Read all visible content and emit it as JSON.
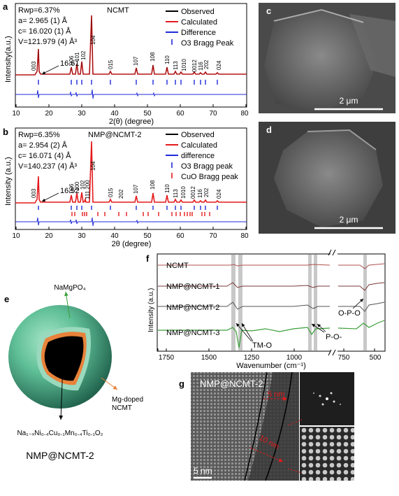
{
  "panel_letters": {
    "a": "a",
    "b": "b",
    "c": "c",
    "d": "d",
    "e": "e",
    "f": "f",
    "g": "g"
  },
  "colors": {
    "observed": "#000000",
    "calculated": "#e41a1c",
    "difference": "#1f2bd8",
    "bragg_o3": "#1f2bd8",
    "bragg_cuo": "#e41a1c",
    "ft_ncmt": "#b05050",
    "ft_1": "#7a3a3a",
    "ft_2": "#555555",
    "ft_3": "#3aa03a",
    "sphere": "#5fbf97",
    "shell": "#e8823a",
    "band": "#c8c8c8"
  },
  "panel_a": {
    "stats": [
      "Rwp=6.37%",
      "a= 2.965 (1) Å",
      "c= 16.020 (1) Å",
      "V=121.979 (4) Å³"
    ],
    "sample": "NCMT",
    "peak_arrow_label": "16.61",
    "legend": [
      "Observed",
      "Calculated",
      "Difference",
      "O3 Bragg Peak"
    ],
    "ylabel": "Intensity(a.u.)",
    "xlabel": "2(θ) (degree)",
    "xticks": [
      "10",
      "20",
      "30",
      "40",
      "50",
      "60",
      "70",
      "80"
    ],
    "peak_labels": [
      "003",
      "006",
      "101",
      "102",
      "104",
      "015",
      "107",
      "108",
      "110",
      "113",
      "1010",
      "0012",
      "116",
      "202",
      "024"
    ]
  },
  "panel_b": {
    "stats": [
      "Rwp=6.35%",
      "a= 2.954 (2) Å",
      "c= 16.071 (4) Å",
      "V=140.237 (4) Å³"
    ],
    "sample": "NMP@NCMT-2",
    "peak_arrow_label": "16.52",
    "legend": [
      "Observed",
      "Calculated",
      "difference",
      "O3 Bragg peak",
      "CuO Bragg peak"
    ],
    "ylabel": "Intensity (a.u.)",
    "xlabel": "2θ (degree)",
    "xticks": [
      "10",
      "20",
      "30",
      "40",
      "50",
      "60",
      "70",
      "80"
    ],
    "peak_labels": [
      "003",
      "006",
      "100",
      "102",
      "111,200",
      "104",
      "015",
      "202",
      "107",
      "108",
      "110",
      "113",
      "1010",
      "0012",
      "116",
      "202",
      "024"
    ]
  },
  "panel_c": {
    "scalebar": "2 μm"
  },
  "panel_d": {
    "scalebar": "2 μm"
  },
  "panel_e": {
    "top_label": "NaMgPO₄",
    "side_label_1": "Mg-doped",
    "side_label_2": "NCMT",
    "formula": "Na₁₋ₓNi₀.₄Cu₀.₁Mn₀.₄Ti₀.₁O₂",
    "caption": "NMP@NCMT-2"
  },
  "panel_f": {
    "ylabel": "Intensity (a.u.)",
    "xlabel": "Wavenumber (cm⁻¹)",
    "xticks": [
      "1750",
      "1500",
      "1250",
      "1000",
      "750",
      "500"
    ],
    "series": [
      "NCMT",
      "NMP@NCMT-1",
      "NMP@NCMT-2",
      "NMP@NCMT-3"
    ],
    "annotations": [
      "TM-O",
      "P-O-",
      "O-P-O"
    ]
  },
  "panel_g": {
    "sample": "NMP@NCMT-2",
    "thickness_1": "5 nm",
    "thickness_2": "10 nm",
    "scalebar": "5 nm"
  }
}
